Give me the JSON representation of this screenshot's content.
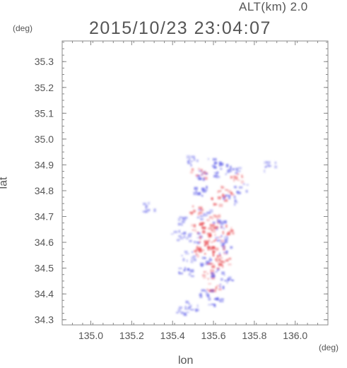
{
  "header": {
    "alt_label": "ALT(km) 2.0",
    "datetime": "2015/10/23 23:04:07"
  },
  "chart_data": {
    "type": "heatmap",
    "title": "2015/10/23 23:04:07",
    "subtitle": "ALT(km) 2.0",
    "xlabel": "lon",
    "ylabel": "lat",
    "x_unit": "(deg)",
    "y_unit": "(deg)",
    "xlim": [
      134.86,
      136.16
    ],
    "ylim": [
      34.28,
      35.38
    ],
    "x_ticks": [
      {
        "value": 135.0,
        "label": "135.0"
      },
      {
        "value": 135.2,
        "label": "135.2"
      },
      {
        "value": 135.4,
        "label": "135.4"
      },
      {
        "value": 135.6,
        "label": "135.6"
      },
      {
        "value": 135.8,
        "label": "135.8"
      },
      {
        "value": 136.0,
        "label": "136.0"
      }
    ],
    "y_ticks": [
      {
        "value": 34.3,
        "label": "34.3"
      },
      {
        "value": 34.4,
        "label": "34.4"
      },
      {
        "value": 34.5,
        "label": "34.5"
      },
      {
        "value": 34.6,
        "label": "34.6"
      },
      {
        "value": 34.7,
        "label": "34.7"
      },
      {
        "value": 34.8,
        "label": "34.8"
      },
      {
        "value": 34.9,
        "label": "34.9"
      },
      {
        "value": 35.0,
        "label": "35.0"
      },
      {
        "value": 35.1,
        "label": "35.1"
      },
      {
        "value": 35.2,
        "label": "35.2"
      },
      {
        "value": 35.3,
        "label": "35.3"
      }
    ],
    "grid": false,
    "colors": {
      "positive": "#e8484f",
      "negative": "#5a5ae8",
      "axis": "#888888",
      "text": "#555555"
    },
    "cells": [
      {
        "lon": 135.49,
        "lat": 34.92,
        "v": -0.6
      },
      {
        "lon": 135.52,
        "lat": 34.87,
        "v": 0.5
      },
      {
        "lon": 135.55,
        "lat": 34.86,
        "v": -0.7
      },
      {
        "lon": 135.6,
        "lat": 34.91,
        "v": -0.8
      },
      {
        "lon": 135.63,
        "lat": 34.87,
        "v": -0.5
      },
      {
        "lon": 135.69,
        "lat": 34.89,
        "v": -0.9
      },
      {
        "lon": 135.71,
        "lat": 34.85,
        "v": 0.4
      },
      {
        "lon": 135.73,
        "lat": 34.81,
        "v": -0.6
      },
      {
        "lon": 135.65,
        "lat": 34.8,
        "v": 0.9
      },
      {
        "lon": 135.62,
        "lat": 34.76,
        "v": 0.6
      },
      {
        "lon": 135.68,
        "lat": 34.77,
        "v": -0.5
      },
      {
        "lon": 135.53,
        "lat": 34.8,
        "v": -0.8
      },
      {
        "lon": 135.87,
        "lat": 34.9,
        "v": -0.4
      },
      {
        "lon": 135.51,
        "lat": 34.73,
        "v": 0.5
      },
      {
        "lon": 135.55,
        "lat": 34.71,
        "v": -0.4
      },
      {
        "lon": 135.59,
        "lat": 34.69,
        "v": 0.3
      },
      {
        "lon": 135.52,
        "lat": 34.66,
        "v": 0.9
      },
      {
        "lon": 135.57,
        "lat": 34.66,
        "v": 0.7
      },
      {
        "lon": 135.62,
        "lat": 34.67,
        "v": -0.6
      },
      {
        "lon": 135.66,
        "lat": 34.65,
        "v": 0.8
      },
      {
        "lon": 135.5,
        "lat": 34.62,
        "v": -0.5
      },
      {
        "lon": 135.55,
        "lat": 34.61,
        "v": 0.6
      },
      {
        "lon": 135.6,
        "lat": 34.62,
        "v": 0.8
      },
      {
        "lon": 135.64,
        "lat": 34.61,
        "v": -0.6
      },
      {
        "lon": 135.53,
        "lat": 34.57,
        "v": 0.9
      },
      {
        "lon": 135.58,
        "lat": 34.58,
        "v": 1.0
      },
      {
        "lon": 135.62,
        "lat": 34.57,
        "v": 0.9
      },
      {
        "lon": 135.66,
        "lat": 34.58,
        "v": -0.5
      },
      {
        "lon": 135.56,
        "lat": 34.53,
        "v": -0.7
      },
      {
        "lon": 135.6,
        "lat": 34.52,
        "v": 0.8
      },
      {
        "lon": 135.64,
        "lat": 34.53,
        "v": 0.5
      },
      {
        "lon": 135.47,
        "lat": 34.55,
        "v": -0.5
      },
      {
        "lon": 135.46,
        "lat": 34.49,
        "v": -0.8
      },
      {
        "lon": 135.57,
        "lat": 34.48,
        "v": 0.4
      },
      {
        "lon": 135.62,
        "lat": 34.48,
        "v": -0.6
      },
      {
        "lon": 135.66,
        "lat": 34.45,
        "v": -0.9
      },
      {
        "lon": 135.59,
        "lat": 34.43,
        "v": 0.5
      },
      {
        "lon": 135.55,
        "lat": 34.4,
        "v": -0.6
      },
      {
        "lon": 135.49,
        "lat": 34.36,
        "v": -0.5
      },
      {
        "lon": 135.45,
        "lat": 34.34,
        "v": -0.4
      },
      {
        "lon": 135.6,
        "lat": 34.38,
        "v": -0.8
      },
      {
        "lon": 135.44,
        "lat": 34.69,
        "v": -0.5
      },
      {
        "lon": 135.42,
        "lat": 34.63,
        "v": -0.4
      },
      {
        "lon": 135.28,
        "lat": 34.74,
        "v": -0.3
      }
    ]
  }
}
